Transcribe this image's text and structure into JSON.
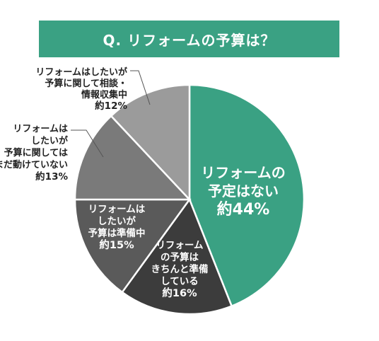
{
  "title": "Q. リフォームの予算は？",
  "chart_data": {
    "type": "pie",
    "title": "Q. リフォームの予算は？",
    "unit": "%",
    "start_angle_deg": 0,
    "direction": "clockwise",
    "slices": [
      {
        "label": "リフォームの予定はない",
        "value": 44,
        "value_text": "約44%",
        "color": "#3aa183",
        "label_lines": [
          "リフォームの",
          "予定はない"
        ],
        "label_position": "inside"
      },
      {
        "label": "リフォームの予算はきちんと準備している",
        "value": 16,
        "value_text": "約16%",
        "color": "#3c3c3c",
        "label_lines": [
          "リフォーム",
          "の予算は",
          "きちんと準備",
          "している"
        ],
        "label_position": "inside"
      },
      {
        "label": "リフォームはしたいが予算は準備中",
        "value": 15,
        "value_text": "約15%",
        "color": "#5a5a5a",
        "label_lines": [
          "リフォームは",
          "したいが",
          "予算は準備中"
        ],
        "label_position": "inside"
      },
      {
        "label": "リフォームはしたいが予算に関してはまだ動けていない",
        "value": 13,
        "value_text": "約13%",
        "color": "#7a7a7a",
        "label_lines": [
          "リフォームは",
          "したいが",
          "予算に関しては",
          "まだ動けていない"
        ],
        "label_position": "outside"
      },
      {
        "label": "リフォームはしたいが予算に関して相談・情報収集中",
        "value": 12,
        "value_text": "約12%",
        "color": "#9b9b9b",
        "label_lines": [
          "リフォームはしたいが",
          "予算に関して相談・",
          "情報収集中"
        ],
        "label_position": "outside"
      }
    ],
    "legend": "none"
  }
}
